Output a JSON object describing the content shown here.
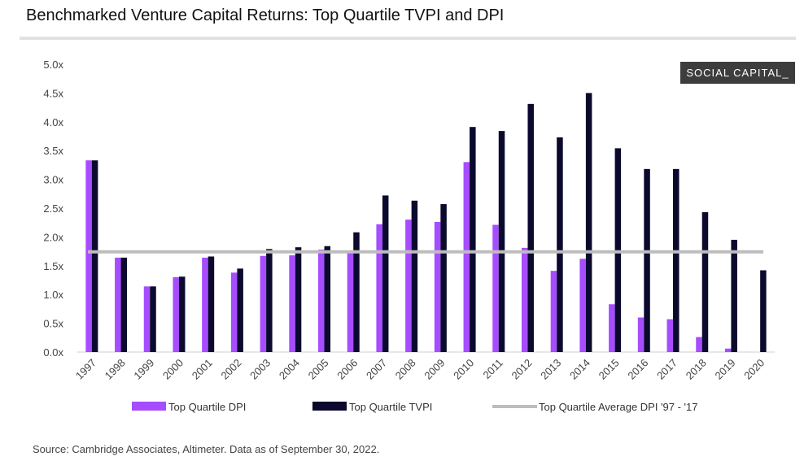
{
  "header": {
    "title": "Benchmarked Venture Capital Returns: Top Quartile TVPI and DPI"
  },
  "brand": {
    "label": "SOCIAL CAPITAL_"
  },
  "footer": {
    "source": "Source: Cambridge Associates, Altimeter. Data as of September 30, 2022."
  },
  "chart_data": {
    "type": "bar",
    "title": "Benchmarked Venture Capital Returns: Top Quartile TVPI and DPI",
    "categories": [
      "1997",
      "1998",
      "1999",
      "2000",
      "2001",
      "2002",
      "2003",
      "2004",
      "2005",
      "2006",
      "2007",
      "2008",
      "2009",
      "2010",
      "2011",
      "2012",
      "2013",
      "2014",
      "2015",
      "2016",
      "2017",
      "2018",
      "2019",
      "2020"
    ],
    "series": [
      {
        "name": "Top Quartile DPI",
        "color": "#a64dff",
        "values": [
          3.33,
          1.64,
          1.14,
          1.3,
          1.64,
          1.38,
          1.67,
          1.68,
          1.78,
          1.74,
          2.22,
          2.3,
          2.26,
          3.3,
          2.21,
          1.81,
          1.41,
          1.62,
          0.83,
          0.6,
          0.57,
          0.26,
          0.06,
          0.0
        ]
      },
      {
        "name": "Top Quartile TVPI",
        "color": "#0b0a2e",
        "values": [
          3.33,
          1.64,
          1.14,
          1.31,
          1.66,
          1.45,
          1.79,
          1.82,
          1.84,
          2.08,
          2.72,
          2.63,
          2.57,
          3.91,
          3.84,
          4.31,
          3.73,
          4.5,
          3.54,
          3.18,
          3.18,
          2.43,
          1.95,
          1.42
        ]
      }
    ],
    "reference_line": {
      "name": "Top Quartile Average DPI '97 - '17",
      "value": 1.74,
      "color": "#bdbdbd"
    },
    "yticks": [
      "0.0x",
      "0.5x",
      "1.0x",
      "1.5x",
      "2.0x",
      "2.5x",
      "3.0x",
      "3.5x",
      "4.0x",
      "4.5x",
      "5.0x"
    ],
    "ylim": [
      0,
      5
    ],
    "xlabel": "",
    "ylabel": "",
    "legend_position": "bottom"
  }
}
